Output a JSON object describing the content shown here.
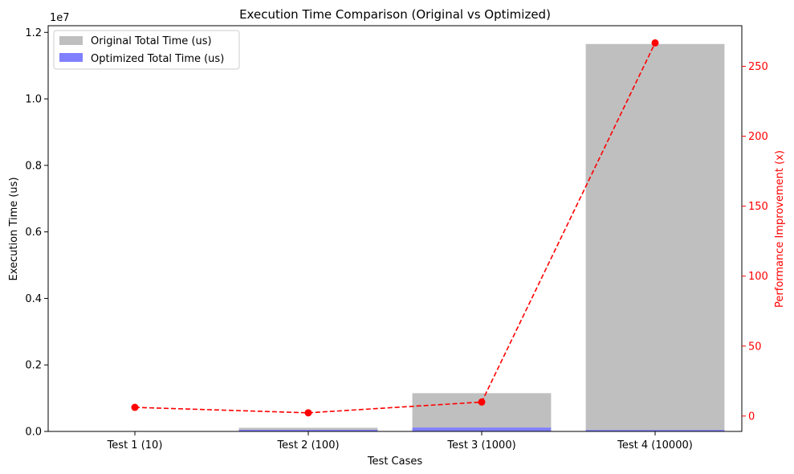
{
  "chart_data": {
    "type": "bar",
    "title": "Execution Time Comparison (Original vs Optimized)",
    "xlabel": "Test Cases",
    "ylabel": "Execution Time (us)",
    "y2label": "Performance Improvement (x)",
    "offset_label": "1e7",
    "categories": [
      "Test 1 (10)",
      "Test 2 (100)",
      "Test 3 (1000)",
      "Test 4 (10000)"
    ],
    "ylim": [
      0,
      12200000
    ],
    "y_ticks": [
      0,
      2000000,
      4000000,
      6000000,
      8000000,
      10000000,
      12000000
    ],
    "y_tick_labels": [
      "0.0",
      "0.2",
      "0.4",
      "0.6",
      "0.8",
      "1.0",
      "1.2"
    ],
    "y2lim": [
      -11,
      279
    ],
    "y2_ticks": [
      0,
      50,
      100,
      150,
      200,
      250
    ],
    "y2_tick_labels": [
      "0",
      "50",
      "100",
      "150",
      "200",
      "250"
    ],
    "legend_position": "top-left",
    "grid": false,
    "series": [
      {
        "name": "Original Total Time (us)",
        "type": "bar",
        "color": "#bfbfbf",
        "values": [
          8000,
          110000,
          1150000,
          11650000
        ]
      },
      {
        "name": "Optimized Total Time (us)",
        "type": "bar",
        "color": "#8080ff",
        "values": [
          1300,
          48000,
          115000,
          44000
        ]
      },
      {
        "type": "line",
        "axis": "right",
        "color": "#ff0000",
        "style": "dashed",
        "marker": "circle",
        "values": [
          6.2,
          2.3,
          10.0,
          266.7
        ]
      }
    ]
  }
}
